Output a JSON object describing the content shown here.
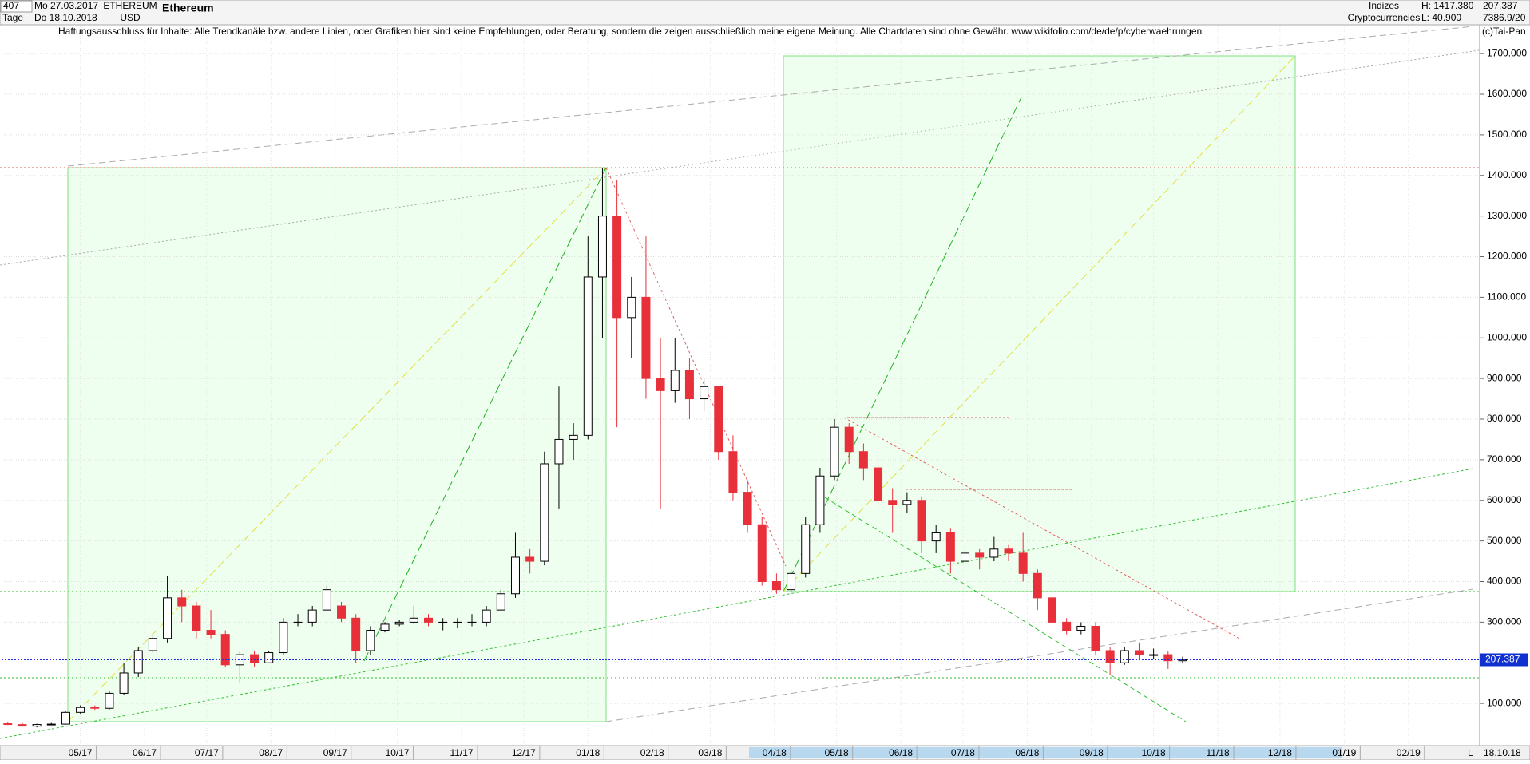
{
  "header": {
    "count": "407",
    "timeframe": "Tage",
    "start": "Mo 27.03.2017",
    "end": "Do 18.10.2018",
    "symbol": "ETHEREUM",
    "currency": "USD",
    "name": "Ethereum",
    "group": "Indizes",
    "subgroup": "Cryptocurrencies",
    "high": "H: 1417.380",
    "low": "L: 40.900",
    "last": "207.387",
    "info": "7386.9/20"
  },
  "disclaimer": "Haftungsausschluss für Inhalte: Alle Trendkanäle bzw. andere Linien, oder Grafiken hier sind keine Empfehlungen, oder Beratung, sondern die zeigen ausschließlich meine eigene Meinung. Alle Chartdaten sind ohne Gewähr.  www.wikifolio.com/de/de/p/cyberwaehrungen",
  "copyright": "(c)Tai-Pan",
  "footer": {
    "date": "18.10.18",
    "mode": "L"
  },
  "chart_data": {
    "type": "candlestick",
    "x": [
      "2017-03-27",
      "2017-04-03",
      "2017-04-10",
      "2017-04-17",
      "2017-04-24",
      "2017-05-01",
      "2017-05-08",
      "2017-05-15",
      "2017-05-22",
      "2017-05-29",
      "2017-06-05",
      "2017-06-12",
      "2017-06-19",
      "2017-06-26",
      "2017-07-03",
      "2017-07-10",
      "2017-07-17",
      "2017-07-24",
      "2017-07-31",
      "2017-08-07",
      "2017-08-14",
      "2017-08-21",
      "2017-08-28",
      "2017-09-04",
      "2017-09-11",
      "2017-09-18",
      "2017-09-25",
      "2017-10-02",
      "2017-10-09",
      "2017-10-16",
      "2017-10-23",
      "2017-10-30",
      "2017-11-06",
      "2017-11-13",
      "2017-11-20",
      "2017-11-27",
      "2017-12-04",
      "2017-12-11",
      "2017-12-18",
      "2017-12-25",
      "2018-01-01",
      "2018-01-08",
      "2018-01-15",
      "2018-01-22",
      "2018-01-29",
      "2018-02-05",
      "2018-02-12",
      "2018-02-19",
      "2018-02-26",
      "2018-03-05",
      "2018-03-12",
      "2018-03-19",
      "2018-03-26",
      "2018-04-02",
      "2018-04-09",
      "2018-04-16",
      "2018-04-23",
      "2018-04-30",
      "2018-05-07",
      "2018-05-14",
      "2018-05-21",
      "2018-05-28",
      "2018-06-04",
      "2018-06-11",
      "2018-06-18",
      "2018-06-25",
      "2018-07-02",
      "2018-07-09",
      "2018-07-16",
      "2018-07-23",
      "2018-07-30",
      "2018-08-06",
      "2018-08-13",
      "2018-08-20",
      "2018-08-27",
      "2018-09-03",
      "2018-09-10",
      "2018-09-17",
      "2018-09-24",
      "2018-10-01",
      "2018-10-08",
      "2018-10-15"
    ],
    "ohlc": [
      [
        50,
        53,
        48,
        48
      ],
      [
        48,
        52,
        43,
        44
      ],
      [
        44,
        50,
        41,
        48
      ],
      [
        48,
        52,
        46,
        49
      ],
      [
        49,
        80,
        48,
        78
      ],
      [
        78,
        95,
        75,
        90
      ],
      [
        90,
        95,
        84,
        88
      ],
      [
        88,
        130,
        85,
        125
      ],
      [
        125,
        200,
        120,
        175
      ],
      [
        175,
        240,
        165,
        230
      ],
      [
        230,
        270,
        225,
        260
      ],
      [
        260,
        414,
        250,
        360
      ],
      [
        360,
        380,
        300,
        340
      ],
      [
        340,
        350,
        260,
        280
      ],
      [
        280,
        330,
        260,
        270
      ],
      [
        270,
        280,
        190,
        195
      ],
      [
        195,
        230,
        150,
        220
      ],
      [
        220,
        230,
        190,
        200
      ],
      [
        200,
        230,
        200,
        225
      ],
      [
        225,
        310,
        220,
        300
      ],
      [
        300,
        320,
        290,
        300
      ],
      [
        300,
        340,
        290,
        330
      ],
      [
        330,
        390,
        330,
        380
      ],
      [
        340,
        350,
        300,
        310
      ],
      [
        310,
        320,
        200,
        230
      ],
      [
        230,
        290,
        220,
        280
      ],
      [
        280,
        300,
        275,
        295
      ],
      [
        295,
        305,
        290,
        300
      ],
      [
        300,
        340,
        295,
        310
      ],
      [
        310,
        320,
        290,
        300
      ],
      [
        300,
        310,
        280,
        300
      ],
      [
        300,
        310,
        285,
        300
      ],
      [
        300,
        320,
        290,
        300
      ],
      [
        300,
        340,
        290,
        330
      ],
      [
        330,
        380,
        330,
        370
      ],
      [
        370,
        520,
        360,
        460
      ],
      [
        460,
        480,
        420,
        450
      ],
      [
        450,
        720,
        440,
        690
      ],
      [
        690,
        880,
        580,
        750
      ],
      [
        750,
        790,
        700,
        760
      ],
      [
        760,
        1250,
        750,
        1150
      ],
      [
        1150,
        1417.38,
        1000,
        1300
      ],
      [
        1300,
        1390,
        780,
        1050
      ],
      [
        1050,
        1150,
        950,
        1100
      ],
      [
        1100,
        1250,
        850,
        900
      ],
      [
        900,
        1000,
        580,
        870
      ],
      [
        870,
        1000,
        840,
        920
      ],
      [
        920,
        950,
        800,
        850
      ],
      [
        850,
        900,
        820,
        880
      ],
      [
        880,
        880,
        700,
        720
      ],
      [
        720,
        760,
        600,
        620
      ],
      [
        620,
        650,
        520,
        540
      ],
      [
        540,
        560,
        390,
        400
      ],
      [
        400,
        420,
        370,
        380
      ],
      [
        380,
        430,
        370,
        420
      ],
      [
        420,
        560,
        410,
        540
      ],
      [
        540,
        680,
        520,
        660
      ],
      [
        660,
        800,
        650,
        780
      ],
      [
        780,
        790,
        690,
        720
      ],
      [
        720,
        740,
        650,
        680
      ],
      [
        680,
        700,
        580,
        600
      ],
      [
        600,
        630,
        520,
        590
      ],
      [
        590,
        620,
        570,
        600
      ],
      [
        600,
        610,
        470,
        500
      ],
      [
        500,
        540,
        470,
        520
      ],
      [
        520,
        530,
        420,
        450
      ],
      [
        450,
        490,
        440,
        470
      ],
      [
        470,
        480,
        430,
        460
      ],
      [
        460,
        510,
        450,
        480
      ],
      [
        480,
        490,
        450,
        470
      ],
      [
        470,
        520,
        400,
        420
      ],
      [
        420,
        430,
        330,
        360
      ],
      [
        360,
        370,
        260,
        300
      ],
      [
        300,
        310,
        270,
        280
      ],
      [
        280,
        300,
        270,
        290
      ],
      [
        290,
        300,
        220,
        230
      ],
      [
        230,
        240,
        170,
        200
      ],
      [
        200,
        240,
        195,
        230
      ],
      [
        230,
        250,
        210,
        220
      ],
      [
        220,
        235,
        210,
        220
      ],
      [
        220,
        230,
        185,
        205
      ],
      [
        205,
        215,
        200,
        207.387
      ]
    ],
    "up_color": "#ffffff",
    "down_color": "#e8303a",
    "xlim": [
      "2017-03-24",
      "2019-03-07"
    ],
    "xticks": [
      {
        "value": "2017-05-01",
        "label": "05/17"
      },
      {
        "value": "2017-06-01",
        "label": "06/17"
      },
      {
        "value": "2017-07-01",
        "label": "07/17"
      },
      {
        "value": "2017-08-01",
        "label": "08/17"
      },
      {
        "value": "2017-09-01",
        "label": "09/17"
      },
      {
        "value": "2017-10-01",
        "label": "10/17"
      },
      {
        "value": "2017-11-01",
        "label": "11/17"
      },
      {
        "value": "2017-12-01",
        "label": "12/17"
      },
      {
        "value": "2018-01-01",
        "label": "01/18"
      },
      {
        "value": "2018-02-01",
        "label": "02/18"
      },
      {
        "value": "2018-03-01",
        "label": "03/18"
      },
      {
        "value": "2018-04-01",
        "label": "04/18"
      },
      {
        "value": "2018-05-01",
        "label": "05/18"
      },
      {
        "value": "2018-06-01",
        "label": "06/18"
      },
      {
        "value": "2018-07-01",
        "label": "07/18"
      },
      {
        "value": "2018-08-01",
        "label": "08/18"
      },
      {
        "value": "2018-09-01",
        "label": "09/18"
      },
      {
        "value": "2018-10-01",
        "label": "10/18"
      },
      {
        "value": "2018-11-01",
        "label": "11/18"
      },
      {
        "value": "2018-12-01",
        "label": "12/18"
      },
      {
        "value": "2019-01-01",
        "label": "01/19"
      },
      {
        "value": "2019-02-01",
        "label": "02/19"
      }
    ],
    "ylim": [
      0,
      1773
    ],
    "yticks": [
      {
        "value": 100,
        "label": "100.000"
      },
      {
        "value": 200,
        "label": "200.000"
      },
      {
        "value": 300,
        "label": "300.000"
      },
      {
        "value": 400,
        "label": "400.000"
      },
      {
        "value": 500,
        "label": "500.000"
      },
      {
        "value": 600,
        "label": "600.000"
      },
      {
        "value": 700,
        "label": "700.000"
      },
      {
        "value": 800,
        "label": "800.000"
      },
      {
        "value": 900,
        "label": "900.000"
      },
      {
        "value": 1000,
        "label": "1000.000"
      },
      {
        "value": 1100,
        "label": "1100.000"
      },
      {
        "value": 1200,
        "label": "1200.000"
      },
      {
        "value": 1300,
        "label": "1300.000"
      },
      {
        "value": 1400,
        "label": "1400.000"
      },
      {
        "value": 1500,
        "label": "1500.000"
      },
      {
        "value": 1600,
        "label": "1600.000"
      },
      {
        "value": 1700,
        "label": "1700.000"
      }
    ],
    "grid": true
  }
}
